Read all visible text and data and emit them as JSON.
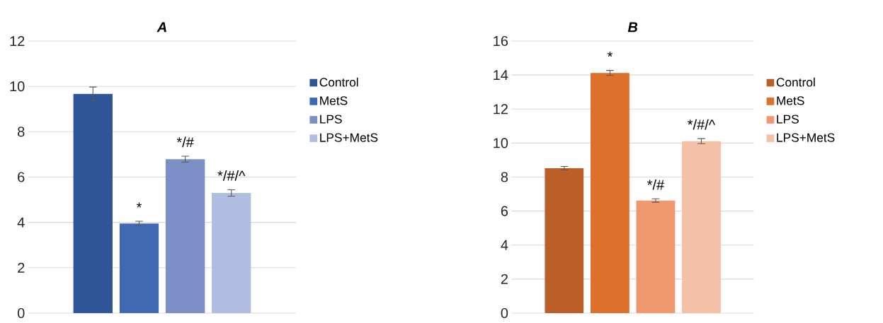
{
  "chart_data": [
    {
      "type": "bar",
      "title": "A",
      "categories": [
        null
      ],
      "ylim": [
        0,
        12
      ],
      "yticks": [
        0,
        2,
        4,
        6,
        8,
        10,
        12
      ],
      "grid": "y",
      "legend": "right",
      "tick_labels": "y",
      "series": [
        {
          "name": "Control",
          "color": "#2e5597",
          "values": [
            9.67
          ],
          "errors": [
            0.3
          ]
        },
        {
          "name": "MetS",
          "color": "#3f69b3",
          "values": [
            3.95
          ],
          "errors": [
            0.1
          ],
          "value_labels": [
            "*"
          ]
        },
        {
          "name": "LPS",
          "color": "#7b8fc6",
          "values": [
            6.79
          ],
          "errors": [
            0.13
          ],
          "value_labels": [
            "*/#"
          ]
        },
        {
          "name": "LPS+MetS",
          "color": "#b0bde0",
          "values": [
            5.3
          ],
          "errors": [
            0.14
          ],
          "value_labels": [
            "*/#/^"
          ]
        }
      ]
    },
    {
      "type": "bar",
      "title": "B",
      "categories": [
        null
      ],
      "ylim": [
        0,
        16
      ],
      "yticks": [
        0,
        2,
        4,
        6,
        8,
        10,
        12,
        14,
        16
      ],
      "grid": "y",
      "legend": "right",
      "tick_labels": "y",
      "series": [
        {
          "name": "Control",
          "color": "#bb5e28",
          "values": [
            8.52
          ],
          "errors": [
            0.1
          ]
        },
        {
          "name": "MetS",
          "color": "#dd712c",
          "values": [
            14.12
          ],
          "errors": [
            0.15
          ],
          "value_labels": [
            "*"
          ]
        },
        {
          "name": "LPS",
          "color": "#ef9870",
          "values": [
            6.62
          ],
          "errors": [
            0.1
          ],
          "value_labels": [
            "*/#"
          ]
        },
        {
          "name": "LPS+MetS",
          "color": "#f5c0a8",
          "values": [
            10.11
          ],
          "errors": [
            0.15
          ],
          "value_labels": [
            "*/#/^"
          ]
        }
      ]
    }
  ]
}
